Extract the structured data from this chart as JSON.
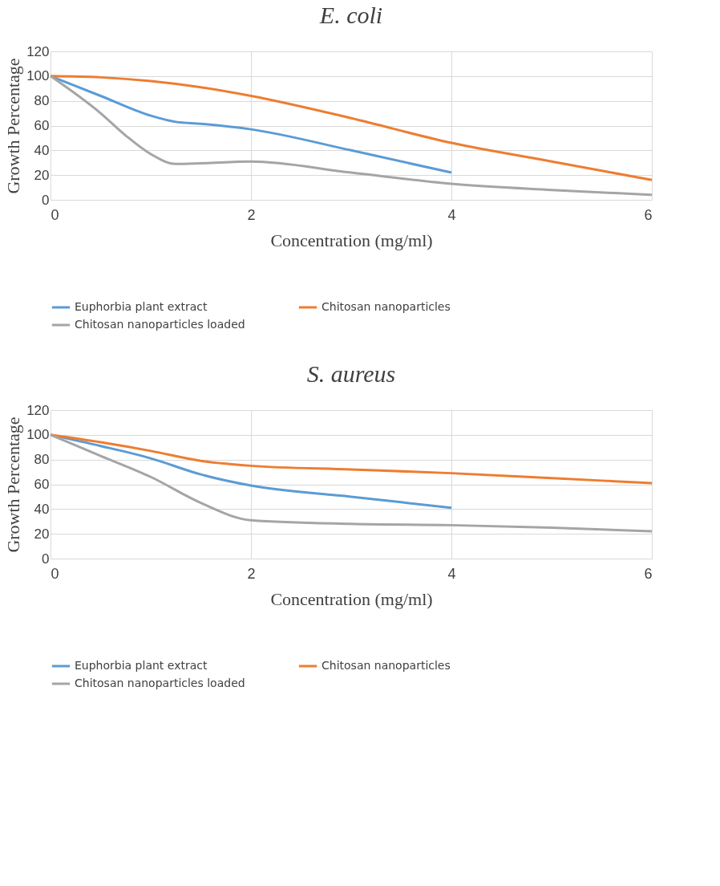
{
  "chart_data": [
    {
      "type": "line",
      "title": "E. coli",
      "xlabel": "Concentration (mg/ml)",
      "ylabel": "Growth Percentage",
      "xlim": [
        0,
        6
      ],
      "xticks": [
        0,
        2,
        4,
        6
      ],
      "ylim": [
        0,
        120
      ],
      "yticks": [
        0,
        20,
        40,
        60,
        80,
        100,
        120
      ],
      "grid": true,
      "legend": "bottom",
      "marker": "none",
      "line_style": "solid",
      "series": [
        {
          "name": "Euphorbia plant extract",
          "color": "#5b9bd5",
          "x": [
            0,
            0.5,
            1,
            1.25,
            1.5,
            2,
            3,
            4
          ],
          "values": [
            100,
            84,
            68,
            63,
            61.5,
            57,
            40,
            22
          ]
        },
        {
          "name": "Chitosan nanoparticles",
          "color": "#ed7d31",
          "x": [
            0,
            0.5,
            1,
            1.5,
            2,
            3,
            4,
            5,
            6
          ],
          "values": [
            100,
            99,
            96,
            91,
            84,
            66,
            46,
            31,
            16
          ]
        },
        {
          "name": "Chitosan nanoparticles loaded",
          "color": "#a5a5a5",
          "x": [
            0,
            0.5,
            0.75,
            1,
            1.25,
            1.5,
            2,
            3,
            4,
            5,
            6
          ],
          "values": [
            100,
            70,
            52,
            37,
            29,
            29.5,
            31,
            22,
            13,
            8,
            4
          ]
        }
      ]
    },
    {
      "type": "line",
      "title": "S. aureus",
      "xlabel": "Concentration (mg/ml)",
      "ylabel": "Growth Percentage",
      "xlim": [
        0,
        6
      ],
      "xticks": [
        0,
        2,
        4,
        6
      ],
      "ylim": [
        0,
        120
      ],
      "yticks": [
        0,
        20,
        40,
        60,
        80,
        100,
        120
      ],
      "grid": true,
      "legend": "bottom",
      "marker": "none",
      "line_style": "solid",
      "series": [
        {
          "name": "Euphorbia plant extract",
          "color": "#5b9bd5",
          "x": [
            0,
            0.5,
            1,
            1.5,
            2,
            3,
            4
          ],
          "values": [
            100,
            91,
            81,
            68,
            59,
            50,
            41
          ]
        },
        {
          "name": "Chitosan nanoparticles",
          "color": "#ed7d31",
          "x": [
            0,
            0.5,
            1,
            1.5,
            2,
            3,
            4,
            5,
            6
          ],
          "values": [
            100,
            94,
            87,
            79,
            75,
            72,
            69,
            65,
            61
          ]
        },
        {
          "name": "Chitosan nanoparticles loaded",
          "color": "#a5a5a5",
          "x": [
            0,
            0.5,
            1,
            1.5,
            2,
            3,
            4,
            5,
            6
          ],
          "values": [
            100,
            83,
            66,
            45,
            31,
            28,
            27,
            25,
            22
          ]
        }
      ]
    }
  ]
}
